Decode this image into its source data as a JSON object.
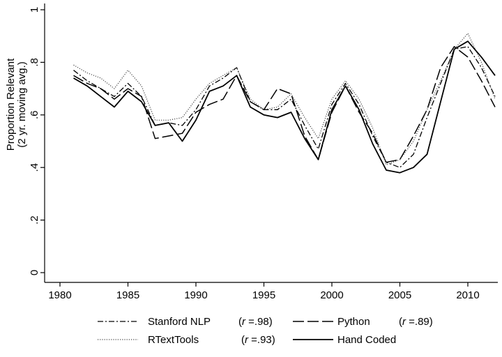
{
  "chart_data": {
    "type": "line",
    "title": "",
    "xlabel": "",
    "ylabel": [
      "Proportion Relevant",
      "(2 yr. moving avg.)"
    ],
    "xlim": [
      1980,
      2012
    ],
    "ylim": [
      0,
      1
    ],
    "x_ticks": [
      1980,
      1985,
      1990,
      1995,
      2000,
      2005,
      2010
    ],
    "x_tick_labels": [
      "1980",
      "1985",
      "1990",
      "1995",
      "2000",
      "2005",
      "2010"
    ],
    "y_ticks": [
      0,
      0.2,
      0.4,
      0.6,
      0.8,
      1
    ],
    "y_tick_labels": [
      "0",
      ".2",
      ".4",
      ".6",
      ".8",
      "1"
    ],
    "grid": false,
    "legend_position": "bottom",
    "x": [
      1981,
      1982,
      1983,
      1984,
      1985,
      1986,
      1987,
      1988,
      1989,
      1990,
      1991,
      1992,
      1993,
      1994,
      1995,
      1996,
      1997,
      1998,
      1999,
      2000,
      2001,
      2002,
      2003,
      2004,
      2005,
      2006,
      2007,
      2008,
      2009,
      2010,
      2011,
      2012
    ],
    "series": [
      {
        "name": "Stanford NLP",
        "r_prefix": "(",
        "r_symbol": "r",
        "r_value": " =.98)",
        "style": "dash-dot",
        "values": [
          0.77,
          0.73,
          0.7,
          0.67,
          0.72,
          0.67,
          0.56,
          0.57,
          0.56,
          0.62,
          0.71,
          0.74,
          0.78,
          0.65,
          0.62,
          0.62,
          0.66,
          0.56,
          0.47,
          0.64,
          0.72,
          0.64,
          0.52,
          0.42,
          0.4,
          0.45,
          0.59,
          0.72,
          0.85,
          0.86,
          0.78,
          0.67
        ]
      },
      {
        "name": "Python",
        "r_prefix": "(",
        "r_symbol": "r",
        "r_value": " =.89)",
        "style": "long-dash",
        "values": [
          0.75,
          0.72,
          0.7,
          0.66,
          0.7,
          0.67,
          0.51,
          0.52,
          0.53,
          0.61,
          0.64,
          0.66,
          0.75,
          0.65,
          0.62,
          0.7,
          0.68,
          0.52,
          0.43,
          0.61,
          0.71,
          0.61,
          0.53,
          0.42,
          0.43,
          0.52,
          0.62,
          0.78,
          0.86,
          0.82,
          0.73,
          0.63
        ]
      },
      {
        "name": "RTextTools",
        "r_prefix": "(",
        "r_symbol": "r",
        "r_value": " =.93)",
        "style": "dotted",
        "values": [
          0.79,
          0.76,
          0.74,
          0.7,
          0.77,
          0.71,
          0.58,
          0.58,
          0.59,
          0.66,
          0.72,
          0.75,
          0.78,
          0.66,
          0.62,
          0.63,
          0.68,
          0.59,
          0.51,
          0.66,
          0.73,
          0.66,
          0.55,
          0.41,
          0.43,
          0.5,
          0.62,
          0.73,
          0.85,
          0.91,
          0.8,
          0.66
        ]
      },
      {
        "name": "Hand Coded",
        "r_prefix": "",
        "r_symbol": "",
        "r_value": "",
        "style": "solid",
        "values": [
          0.74,
          0.71,
          0.67,
          0.63,
          0.69,
          0.65,
          0.56,
          0.57,
          0.5,
          0.58,
          0.69,
          0.71,
          0.75,
          0.63,
          0.6,
          0.59,
          0.61,
          0.51,
          0.43,
          0.62,
          0.71,
          0.62,
          0.49,
          0.39,
          0.38,
          0.4,
          0.45,
          0.65,
          0.85,
          0.88,
          0.82,
          0.75
        ]
      }
    ]
  }
}
